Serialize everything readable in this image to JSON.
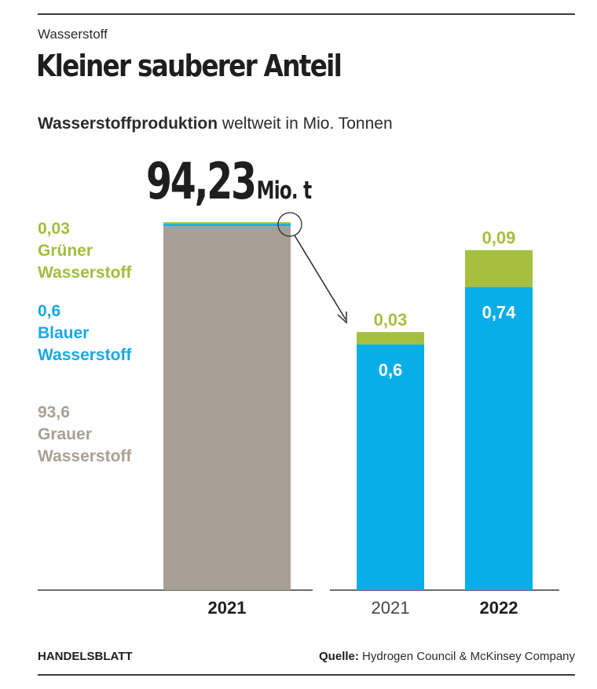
{
  "header": {
    "kicker": "Wasserstoff",
    "headline": "Kleiner sauberer Anteil",
    "subhead_bold": "Wasserstoffproduktion",
    "subhead_rest": "weltweit in Mio. Tonnen"
  },
  "total": {
    "value": "94,23",
    "unit": "Mio. t"
  },
  "legend": {
    "green": {
      "value": "0,03",
      "line1": "Grüner",
      "line2": "Wasserstoff"
    },
    "blue": {
      "value": "0,6",
      "line1": "Blauer",
      "line2": "Wasserstoff"
    },
    "grey": {
      "value": "93,6",
      "line1": "Grauer",
      "line2": "Wasserstoff"
    }
  },
  "colors": {
    "grey": "#a8a095",
    "blue": "#09aee8",
    "green": "#a6bf3f",
    "axis": "#3b3b3b"
  },
  "chart_data": [
    {
      "type": "bar",
      "stacked": true,
      "categories": [
        "2021"
      ],
      "series": [
        {
          "name": "Grauer Wasserstoff",
          "values": [
            93.6
          ]
        },
        {
          "name": "Blauer Wasserstoff",
          "values": [
            0.6
          ]
        },
        {
          "name": "Grüner Wasserstoff",
          "values": [
            0.03
          ]
        }
      ],
      "ylim": [
        0,
        94.23
      ]
    },
    {
      "type": "bar",
      "stacked": true,
      "categories": [
        "2021",
        "2022"
      ],
      "series": [
        {
          "name": "Blauer Wasserstoff",
          "values": [
            0.6,
            0.74
          ],
          "labels": [
            "0,6",
            "0,74"
          ]
        },
        {
          "name": "Grüner Wasserstoff",
          "values": [
            0.03,
            0.09
          ],
          "labels": [
            "0,03",
            "0,09"
          ]
        }
      ],
      "ylim": [
        0,
        0.83
      ]
    }
  ],
  "footer": {
    "brand": "HANDELSBLATT",
    "source_label": "Quelle:",
    "source_text": "Hydrogen Council & McKinsey Company"
  }
}
